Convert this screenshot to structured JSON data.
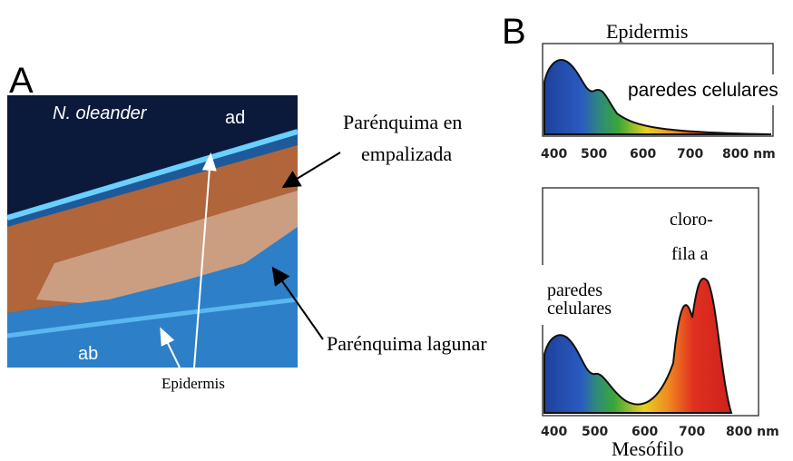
{
  "panel_a": {
    "label": "A",
    "species": "N. oleander",
    "top_label": "ad",
    "bottom_label": "ab",
    "palisade": [
      "Parénquima en",
      "empalizada"
    ],
    "spongy": "Parénquima lagunar",
    "epidermis": "Epidermis"
  },
  "panel_b": {
    "label": "B",
    "top": {
      "title": "Epidermis",
      "annotation": "paredes celulares",
      "ticks": [
        "400",
        "500",
        "600",
        "700",
        "800 nm"
      ]
    },
    "bottom": {
      "title": "Mesófilo",
      "walls": [
        "paredes",
        "celulares"
      ],
      "chlorophyll": [
        "cloro-",
        "fila a"
      ],
      "ticks": [
        "400",
        "500",
        "600",
        "700",
        "800 nm"
      ]
    }
  }
}
